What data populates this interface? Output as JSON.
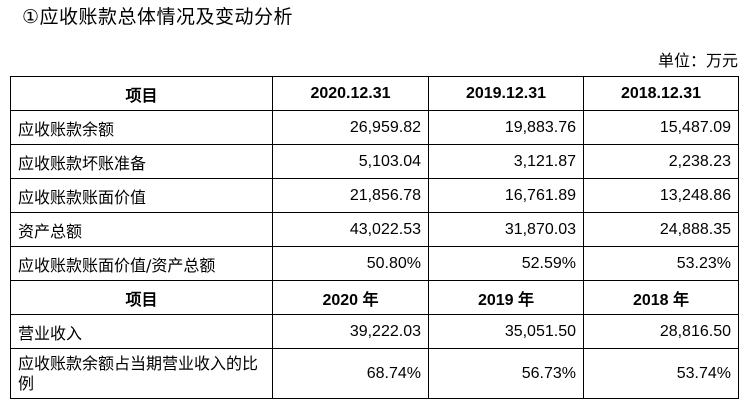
{
  "title": "①应收账款总体情况及变动分析",
  "unit_note": "单位：万元",
  "table": {
    "header_balance": [
      "项目",
      "2020.12.31",
      "2019.12.31",
      "2018.12.31"
    ],
    "balance_rows": [
      {
        "label": "应收账款余额",
        "values": [
          "26,959.82",
          "19,883.76",
          "15,487.09"
        ]
      },
      {
        "label": "应收账款坏账准备",
        "values": [
          "5,103.04",
          "3,121.87",
          "2,238.23"
        ]
      },
      {
        "label": "应收账款账面价值",
        "values": [
          "21,856.78",
          "16,761.89",
          "13,248.86"
        ]
      },
      {
        "label": "资产总额",
        "values": [
          "43,022.53",
          "31,870.03",
          "24,888.35"
        ]
      },
      {
        "label": "应收账款账面价值/资产总额",
        "values": [
          "50.80%",
          "52.59%",
          "53.23%"
        ]
      }
    ],
    "header_income": [
      "项目",
      "2020 年",
      "2019 年",
      "2018 年"
    ],
    "income_rows": [
      {
        "label": "营业收入",
        "values": [
          "39,222.03",
          "35,051.50",
          "28,816.50"
        ]
      },
      {
        "label": "应收账款余额占当期营业收入的比例",
        "values": [
          "68.74%",
          "56.73%",
          "53.74%"
        ]
      }
    ]
  }
}
